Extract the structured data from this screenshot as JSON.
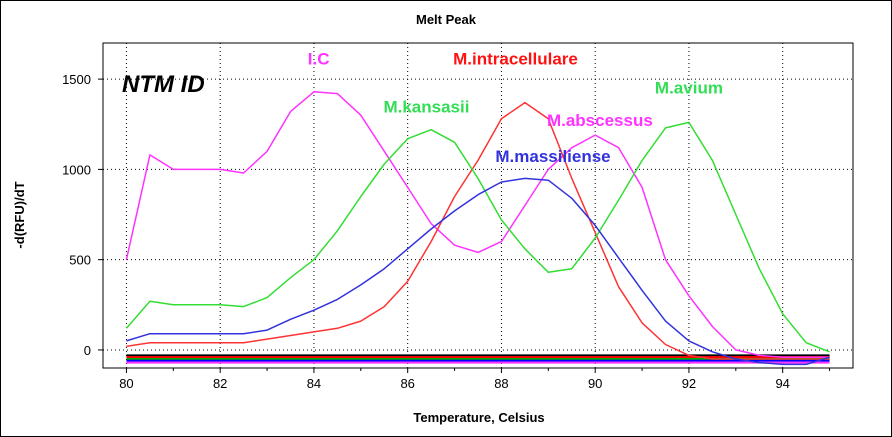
{
  "chart_data": {
    "type": "line",
    "title": "Melt Peak",
    "panel_label": "NTM ID",
    "xlabel": "Temperature, Celsius",
    "ylabel": "-d(RFU)/dT",
    "xlim": [
      79.5,
      95.5
    ],
    "ylim": [
      -100,
      1700
    ],
    "xticks": [
      80,
      82,
      84,
      86,
      88,
      90,
      92,
      94
    ],
    "yticks": [
      0,
      500,
      1000,
      1500
    ],
    "grid": "dotted",
    "legend": "none",
    "series": [
      {
        "name": "I.C",
        "color": "#ff33ff",
        "x": [
          80,
          80.5,
          81,
          81.5,
          82,
          82.5,
          83,
          83.5,
          84,
          84.5,
          85,
          85.5,
          86,
          86.5,
          87,
          87.5,
          88,
          88.5,
          89,
          89.5,
          90,
          90.5,
          91,
          91.5,
          92,
          92.5,
          93,
          93.5,
          94,
          94.5,
          95
        ],
        "y": [
          500,
          1080,
          1000,
          1000,
          1000,
          980,
          1100,
          1320,
          1430,
          1420,
          1300,
          1100,
          900,
          700,
          580,
          540,
          600,
          800,
          1000,
          1120,
          1190,
          1120,
          900,
          500,
          300,
          130,
          0,
          -30,
          -40,
          -40,
          -40
        ]
      },
      {
        "name": "M.intracellulare",
        "color": "#ff3333",
        "x": [
          80,
          80.5,
          81,
          81.5,
          82,
          82.5,
          83,
          83.5,
          84,
          84.5,
          85,
          85.5,
          86,
          86.5,
          87,
          87.5,
          88,
          88.5,
          89,
          89.5,
          90,
          90.5,
          91,
          91.5,
          92,
          92.5,
          93,
          93.5,
          94,
          94.5,
          95
        ],
        "y": [
          20,
          40,
          40,
          40,
          40,
          40,
          60,
          80,
          100,
          120,
          160,
          240,
          380,
          600,
          850,
          1050,
          1280,
          1370,
          1280,
          950,
          650,
          350,
          150,
          30,
          -30,
          -50,
          -50,
          -50,
          -50,
          -50,
          -50
        ]
      },
      {
        "name": "M.kansasii",
        "color": "#33dd33",
        "x": [
          80,
          80.5,
          81,
          81.5,
          82,
          82.5,
          83,
          83.5,
          84,
          84.5,
          85,
          85.5,
          86,
          86.5,
          87,
          87.5,
          88,
          88.5,
          89,
          89.5,
          90,
          90.5,
          91,
          91.5,
          92,
          92.5,
          93,
          93.5,
          94,
          94.5,
          95
        ],
        "y": [
          120,
          270,
          250,
          250,
          250,
          240,
          290,
          400,
          500,
          660,
          850,
          1030,
          1170,
          1220,
          1150,
          950,
          720,
          560,
          430,
          450,
          620,
          830,
          1050,
          1230,
          1260,
          1050,
          750,
          450,
          200,
          40,
          -10
        ]
      },
      {
        "name": "M.massiliense",
        "color": "#3333dd",
        "x": [
          80,
          80.5,
          81,
          81.5,
          82,
          82.5,
          83,
          83.5,
          84,
          84.5,
          85,
          85.5,
          86,
          86.5,
          87,
          87.5,
          88,
          88.5,
          89,
          89.5,
          90,
          90.5,
          91,
          91.5,
          92,
          92.5,
          93,
          93.5,
          94,
          94.5,
          95
        ],
        "y": [
          50,
          90,
          90,
          90,
          90,
          90,
          110,
          170,
          220,
          280,
          360,
          450,
          560,
          670,
          770,
          860,
          930,
          950,
          940,
          840,
          690,
          510,
          330,
          160,
          50,
          -10,
          -50,
          -70,
          -80,
          -80,
          -40
        ]
      },
      {
        "name": "M.abscessus",
        "color": "#ff33ff",
        "x": [],
        "y": []
      },
      {
        "name": "M.avium",
        "color": "#33dd33",
        "x": [],
        "y": []
      }
    ],
    "baselines": [
      {
        "color": "#000000",
        "y": -30
      },
      {
        "color": "#ff0000",
        "y": -40
      },
      {
        "color": "#00aa00",
        "y": -50
      },
      {
        "color": "#0000ff",
        "y": -60
      },
      {
        "color": "#ff33ff",
        "y": -70
      }
    ],
    "annotations": [
      {
        "text": "I.C",
        "color": "#ff33ff",
        "x": 84.1,
        "y": 1580
      },
      {
        "text": "M.intracellulare",
        "color": "#ff1111",
        "x": 88.3,
        "y": 1580
      },
      {
        "text": "M.kansasii",
        "color": "#33dd55",
        "x": 86.4,
        "y": 1315
      },
      {
        "text": "M.avium",
        "color": "#33dd55",
        "x": 92.0,
        "y": 1420
      },
      {
        "text": "M.abscessus",
        "color": "#ff33ff",
        "x": 90.1,
        "y": 1240
      },
      {
        "text": "M.massiliense",
        "color": "#3333dd",
        "x": 89.1,
        "y": 1040
      }
    ]
  }
}
